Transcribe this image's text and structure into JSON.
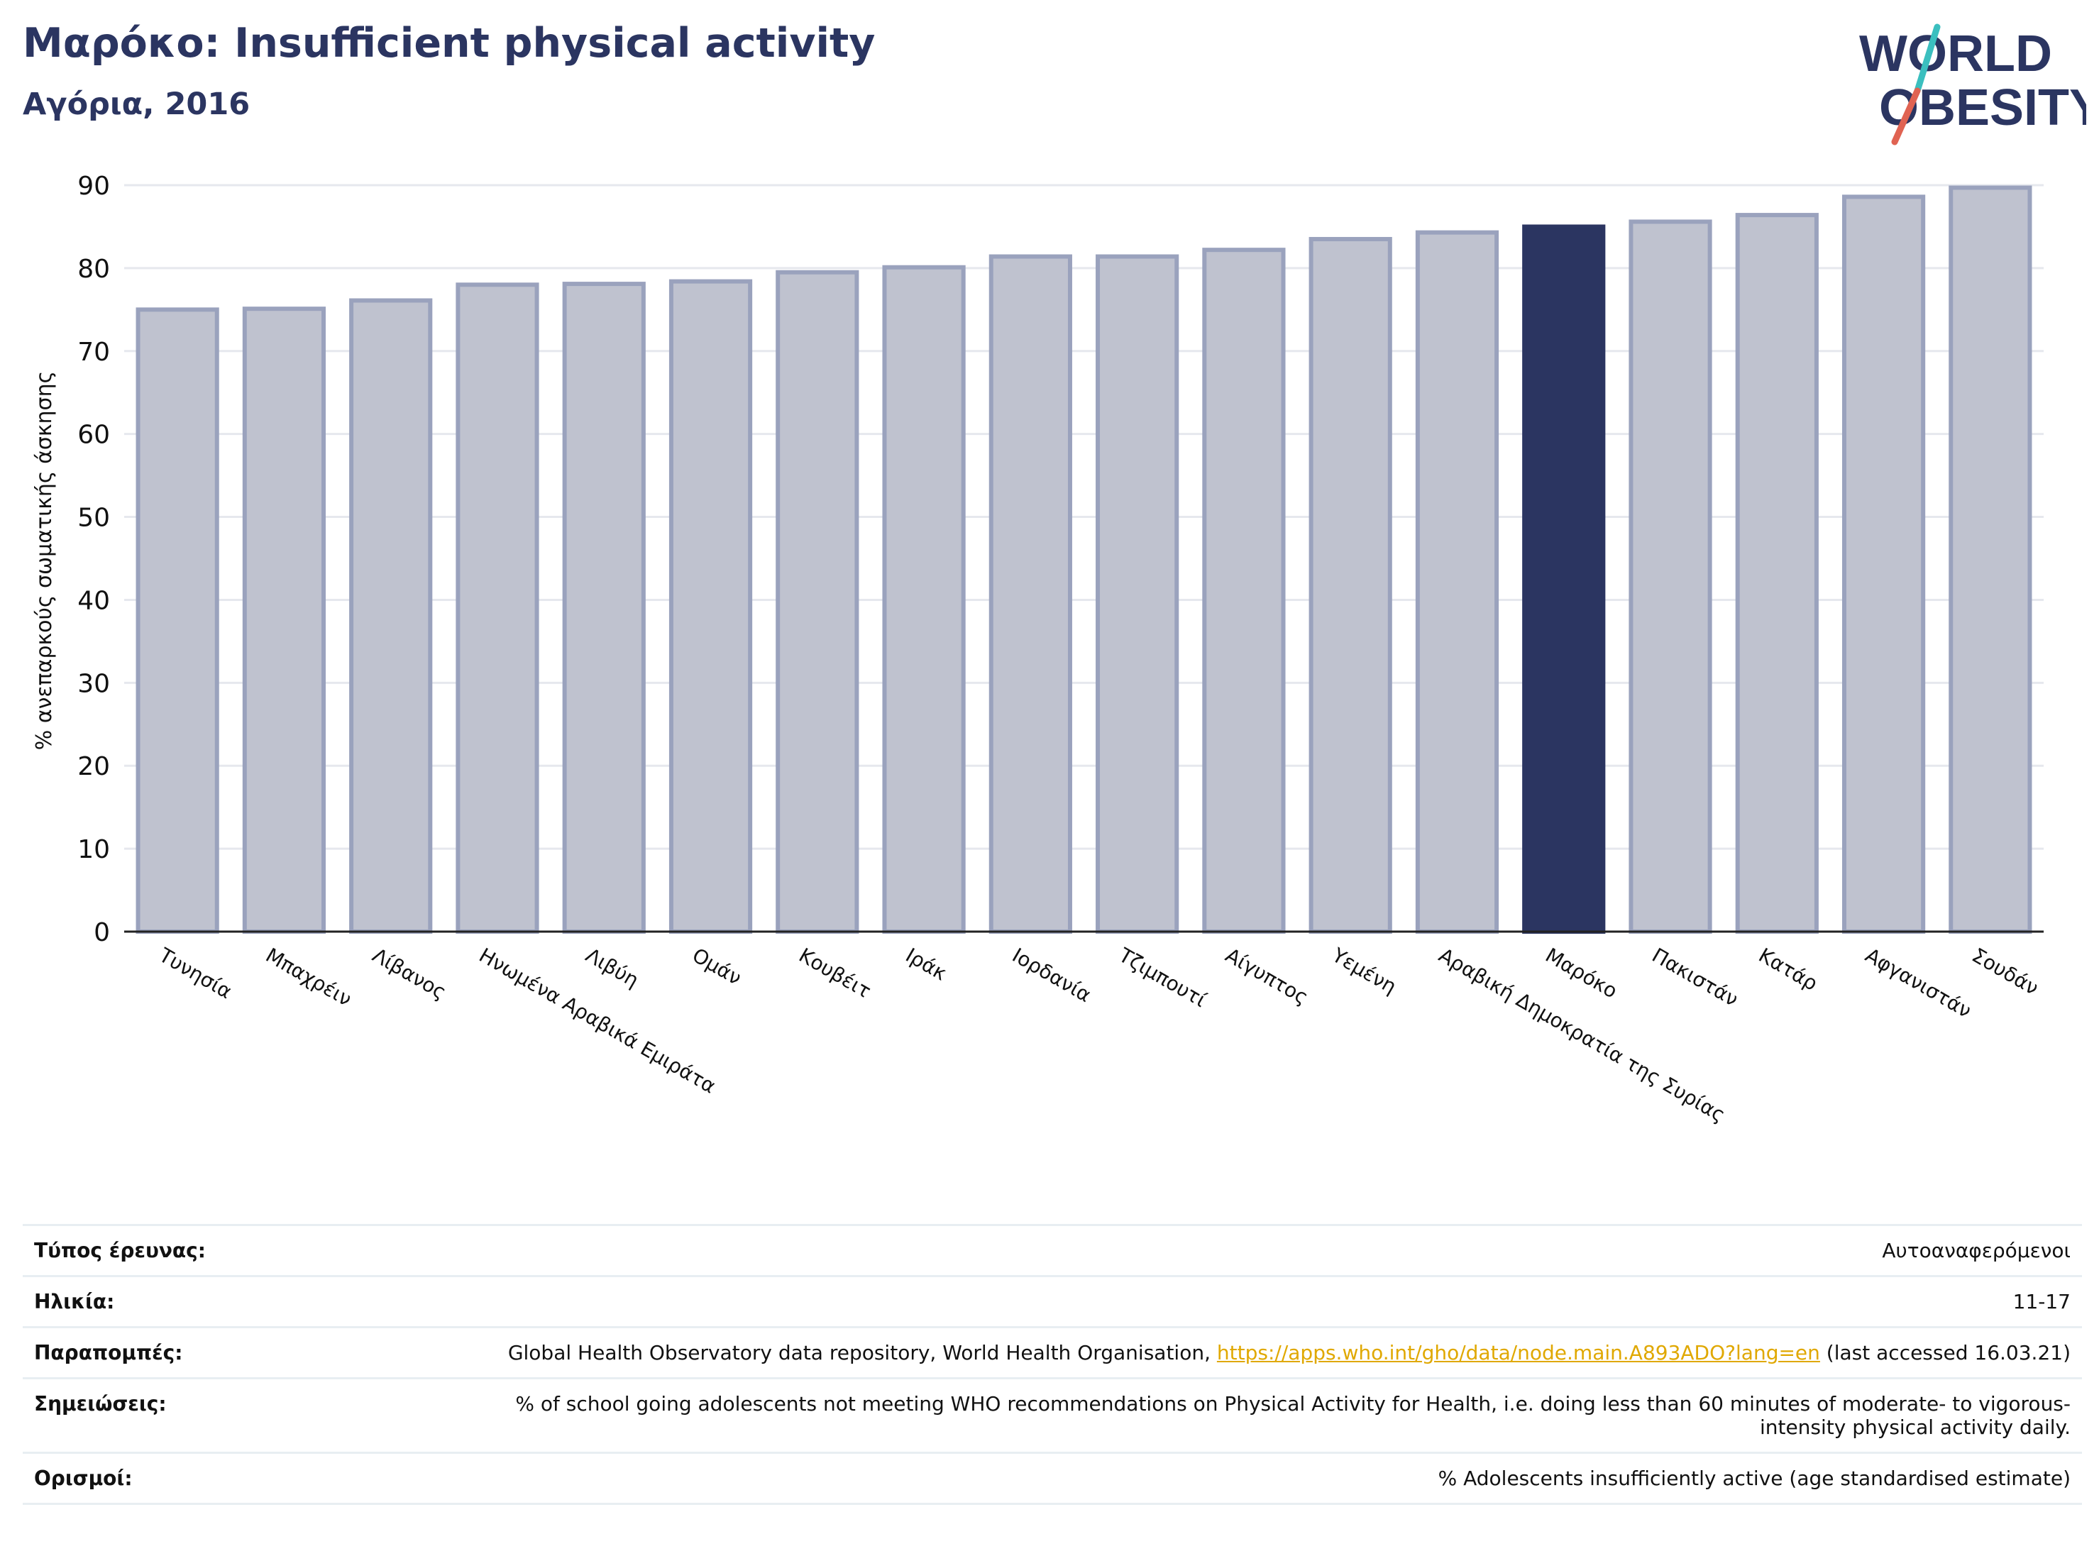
{
  "header": {
    "title": "Μαρόκο: Insufficient physical activity",
    "subtitle": "Αγόρια, 2016"
  },
  "logo": {
    "line1": "WORLD",
    "line2": "OBESITY",
    "colors": {
      "text": "#2b3561",
      "slash_teal": "#3bbfbf",
      "slash_red": "#e06352"
    }
  },
  "colors": {
    "bar": "#bfc2cf",
    "bar_border": "#9aa2bd",
    "highlight": "#2b3561",
    "grid": "#e6e8ee",
    "axis": "#222222",
    "link": "#e0a800"
  },
  "chart_data": {
    "type": "bar",
    "ylabel": "% ανεπαρκούς σωματικής άσκησης",
    "xlabel": "",
    "ylim": [
      0,
      90
    ],
    "yticks": [
      0,
      10,
      20,
      30,
      40,
      50,
      60,
      70,
      80,
      90
    ],
    "grid": true,
    "highlight": "Μαρόκο",
    "categories": [
      "Τυνησία",
      "Μπαχρέιν",
      "Λίβανος",
      "Ηνωμένα Αραβικά Εμιράτα",
      "Λιβύη",
      "Ομάν",
      "Κουβέιτ",
      "Ιράκ",
      "Ιορδανία",
      "Τζιμπουτί",
      "Αίγυπτος",
      "Υεμένη",
      "Αραβική Δημοκρατία της Συρίας",
      "Μαρόκο",
      "Πακιστάν",
      "Κατάρ",
      "Αφγανιστάν",
      "Σουδάν"
    ],
    "values": [
      75.0,
      75.1,
      76.1,
      78.0,
      78.1,
      78.4,
      79.5,
      80.1,
      81.4,
      81.4,
      82.2,
      83.5,
      84.3,
      85.0,
      85.6,
      86.4,
      88.6,
      89.7
    ]
  },
  "info": {
    "rows": [
      {
        "label": "Τύπος έρευνας:",
        "value": "Αυτοαναφερόμενοι"
      },
      {
        "label": "Ηλικία:",
        "value": "11-17"
      },
      {
        "label": "Παραπομπές:",
        "value_prefix": "Global Health Observatory data repository, World Health Organisation, ",
        "link": "https://apps.who.int/gho/data/node.main.A893ADO?lang=en",
        "value_suffix": " (last accessed 16.03.21)"
      },
      {
        "label": "Σημειώσεις:",
        "value": "% of school going adolescents not meeting WHO recommendations on Physical Activity for Health, i.e. doing less than 60 minutes of moderate- to vigorous-intensity physical activity daily."
      },
      {
        "label": "Ορισμοί:",
        "value": "% Adolescents insufficiently active (age standardised estimate)"
      }
    ]
  }
}
